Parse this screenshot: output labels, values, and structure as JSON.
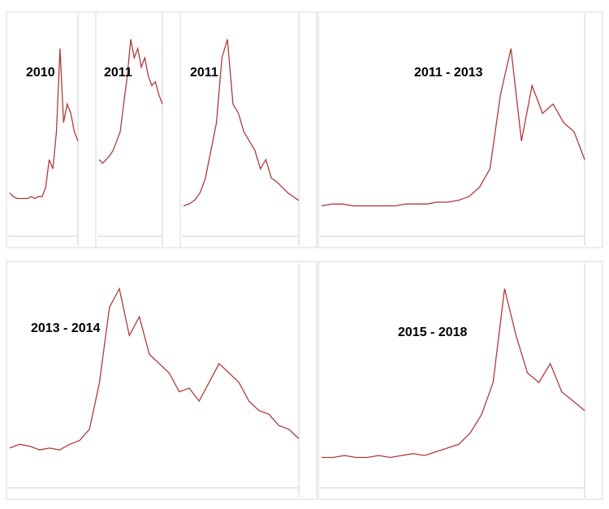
{
  "chart_data": [
    {
      "type": "line",
      "title": "2010",
      "color": "#b03a3a",
      "ylim": [
        0,
        100
      ],
      "values": [
        12,
        10,
        9,
        9,
        9,
        9,
        10,
        9,
        10,
        10,
        15,
        30,
        25,
        45,
        90,
        50,
        60,
        55,
        45,
        40
      ]
    },
    {
      "type": "line",
      "title": "2011",
      "color": "#b03a3a",
      "ylim": [
        0,
        100
      ],
      "values": [
        30,
        28,
        30,
        32,
        35,
        40,
        45,
        60,
        75,
        95,
        85,
        90,
        80,
        85,
        75,
        70,
        72,
        65,
        60
      ]
    },
    {
      "type": "line",
      "title": "2011",
      "color": "#b03a3a",
      "ylim": [
        0,
        100
      ],
      "values": [
        5,
        6,
        8,
        12,
        20,
        35,
        50,
        85,
        95,
        60,
        55,
        45,
        40,
        35,
        25,
        30,
        20,
        18,
        15,
        12,
        10,
        8
      ]
    },
    {
      "type": "line",
      "title": "2011 - 2013",
      "color": "#b03a3a",
      "ylim": [
        0,
        100
      ],
      "values": [
        5,
        6,
        6,
        5,
        5,
        5,
        5,
        5,
        6,
        6,
        6,
        7,
        7,
        8,
        10,
        15,
        25,
        65,
        90,
        40,
        70,
        55,
        60,
        50,
        45,
        30
      ]
    },
    {
      "type": "line",
      "title": "2013 - 2014",
      "color": "#b03a3a",
      "ylim": [
        0,
        100
      ],
      "values": [
        10,
        12,
        11,
        9,
        10,
        9,
        12,
        14,
        20,
        45,
        85,
        95,
        70,
        80,
        60,
        55,
        50,
        40,
        42,
        35,
        45,
        55,
        50,
        45,
        35,
        30,
        28,
        22,
        20,
        15
      ]
    },
    {
      "type": "line",
      "title": "2015 - 2018",
      "color": "#b03a3a",
      "ylim": [
        0,
        100
      ],
      "values": [
        5,
        5,
        6,
        5,
        5,
        6,
        5,
        6,
        7,
        6,
        8,
        10,
        12,
        18,
        28,
        45,
        95,
        70,
        50,
        45,
        55,
        40,
        35,
        30
      ]
    }
  ]
}
